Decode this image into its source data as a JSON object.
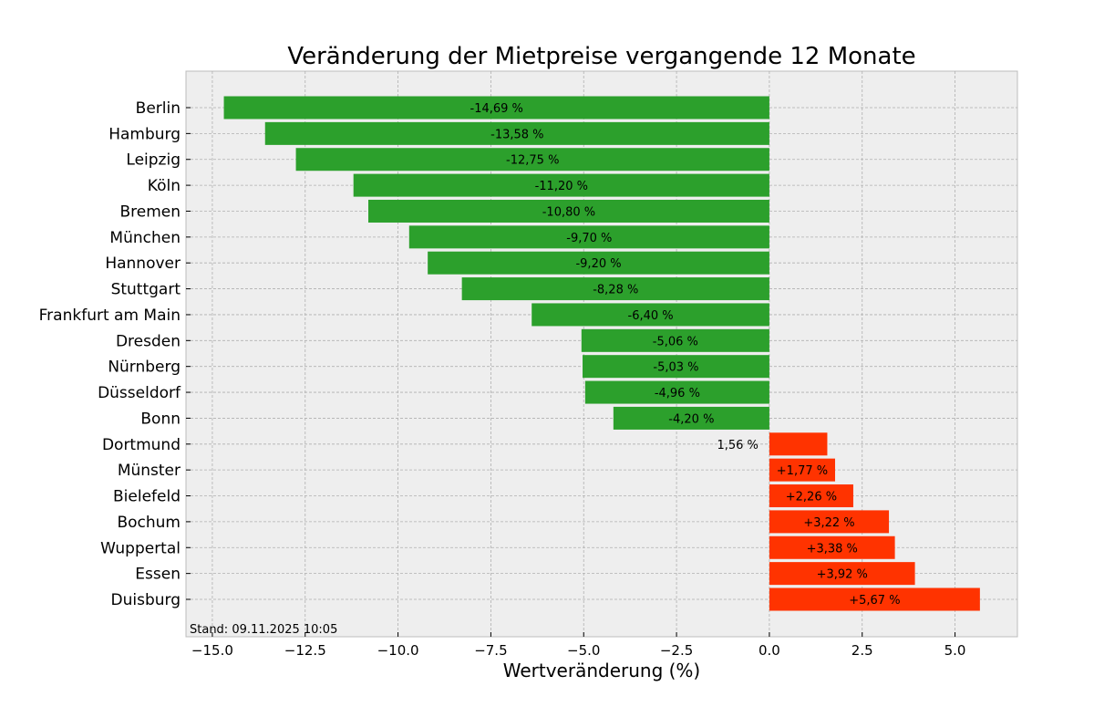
{
  "chart_data": {
    "type": "bar",
    "orientation": "horizontal",
    "title": "Veränderung der Mietpreise vergangende 12 Monate",
    "xlabel": "Wertveränderung (%)",
    "ylabel": "",
    "xlim": [
      -15.71,
      6.68
    ],
    "xticks": [
      -15.0,
      -12.5,
      -10.0,
      -7.5,
      -5.0,
      -2.5,
      0.0,
      2.5,
      5.0
    ],
    "xtick_labels": [
      "−15.0",
      "−12.5",
      "−10.0",
      "−7.5",
      "−5.0",
      "−2.5",
      "0.0",
      "2.5",
      "5.0"
    ],
    "grid": true,
    "annotation": "Stand: 09.11.2025 10:05",
    "colors": {
      "negative": "#2ca02c",
      "positive": "#ff3300",
      "background": "#eeeeee"
    },
    "categories": [
      "Berlin",
      "Hamburg",
      "Leipzig",
      "Köln",
      "Bremen",
      "München",
      "Hannover",
      "Stuttgart",
      "Frankfurt am Main",
      "Dresden",
      "Nürnberg",
      "Düsseldorf",
      "Bonn",
      "Dortmund",
      "Münster",
      "Bielefeld",
      "Bochum",
      "Wuppertal",
      "Essen",
      "Duisburg"
    ],
    "values": [
      -14.69,
      -13.58,
      -12.75,
      -11.2,
      -10.8,
      -9.7,
      -9.2,
      -8.28,
      -6.4,
      -5.06,
      -5.03,
      -4.96,
      -4.2,
      1.56,
      1.77,
      2.26,
      3.22,
      3.38,
      3.92,
      5.67
    ],
    "data_labels": [
      "-14,69 %",
      "-13,58 %",
      "-12,75 %",
      "-11,20 %",
      "-10,80 %",
      "-9,70 %",
      "-9,20 %",
      "-8,28 %",
      "-6,40 %",
      "-5,06 %",
      "-5,03 %",
      "-4,96 %",
      "-4,20 %",
      "1,56 %",
      "+1,77 %",
      "+2,26 %",
      "+3,22 %",
      "+3,38 %",
      "+3,92 %",
      "+5,67 %"
    ]
  }
}
